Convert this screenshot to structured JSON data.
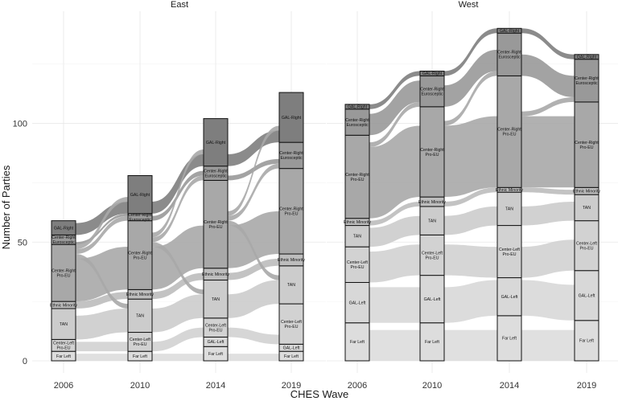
{
  "chart_data": {
    "type": "alluvial",
    "xlabel": "CHES Wave",
    "ylabel": "Number of Parties",
    "y_ticks": [
      0,
      50,
      100
    ],
    "ylim": [
      0,
      140
    ],
    "waves": [
      "2006",
      "2010",
      "2014",
      "2019"
    ],
    "categories": [
      "Far Left",
      "Center-Left Pro-EU",
      "TAN",
      "Ethnic Minority",
      "Center-Right Pro-EU",
      "Center-Right Eurosceptic",
      "GAL-Right",
      "GAL-Left"
    ],
    "category_colors": {
      "Far Left": "#dddddd",
      "GAL-Left": "#d8d8d8",
      "Center-Left Pro-EU": "#d2d2d2",
      "TAN": "#cccccc",
      "Ethnic Minority": "#bdbdbd",
      "Center-Right Pro-EU": "#a8a8a8",
      "Center-Right Eurosceptic": "#999999",
      "GAL-Right": "#7e7e7e"
    },
    "panels": [
      {
        "name": "East",
        "waves": [
          {
            "wave": "2006",
            "segments": [
              {
                "label": "Far Left",
                "value": 4
              },
              {
                "label": "Center-Left Pro-EU",
                "value": 5
              },
              {
                "label": "TAN",
                "value": 13
              },
              {
                "label": "Ethnic Minority",
                "value": 3
              },
              {
                "label": "Center-Right Pro-EU",
                "value": 24
              },
              {
                "label": "Center-Right Eurosceptic",
                "value": 4
              },
              {
                "label": "GAL-Right",
                "value": 6
              }
            ]
          },
          {
            "wave": "2010",
            "segments": [
              {
                "label": "Far Left",
                "value": 4
              },
              {
                "label": "Center-Left Pro-EU",
                "value": 8
              },
              {
                "label": "TAN",
                "value": 14
              },
              {
                "label": "Ethnic Minority",
                "value": 4
              },
              {
                "label": "Center-Right Pro-EU",
                "value": 29
              },
              {
                "label": "Center-Right Eurosceptic",
                "value": 3
              },
              {
                "label": "GAL-Right",
                "value": 16
              }
            ]
          },
          {
            "wave": "2014",
            "segments": [
              {
                "label": "Far Left",
                "value": 6
              },
              {
                "label": "GAL-Left",
                "value": 4
              },
              {
                "label": "Center-Left Pro-EU",
                "value": 8
              },
              {
                "label": "TAN",
                "value": 16
              },
              {
                "label": "Ethnic Minority",
                "value": 5
              },
              {
                "label": "Center-Right Pro-EU",
                "value": 37
              },
              {
                "label": "Center-Right Eurosceptic",
                "value": 6
              },
              {
                "label": "GAL-Right",
                "value": 20
              }
            ]
          },
          {
            "wave": "2019",
            "segments": [
              {
                "label": "Far Left",
                "value": 4
              },
              {
                "label": "GAL-Left",
                "value": 3
              },
              {
                "label": "Center-Left Pro-EU",
                "value": 17
              },
              {
                "label": "TAN",
                "value": 16
              },
              {
                "label": "Ethnic Minority",
                "value": 5
              },
              {
                "label": "Center-Right Pro-EU",
                "value": 36
              },
              {
                "label": "Center-Right Eurosceptic",
                "value": 11
              },
              {
                "label": "GAL-Right",
                "value": 21
              }
            ]
          }
        ],
        "flows": [
          {
            "from": "Far Left",
            "to": "Far Left",
            "value": 3
          },
          {
            "from": "Center-Left Pro-EU",
            "to": "Center-Left Pro-EU",
            "value": 4
          },
          {
            "from": "TAN",
            "to": "TAN",
            "value": 10
          },
          {
            "from": "Ethnic Minority",
            "to": "Ethnic Minority",
            "value": 3
          },
          {
            "from": "Center-Right Pro-EU",
            "to": "Center-Right Pro-EU",
            "value": 18
          },
          {
            "from": "Center-Right Pro-EU",
            "to": "TAN",
            "value": 2
          },
          {
            "from": "Center-Right Pro-EU",
            "to": "Center-Right Eurosceptic",
            "value": 2
          },
          {
            "from": "Center-Right Eurosceptic",
            "to": "Center-Right Eurosceptic",
            "value": 2
          },
          {
            "from": "GAL-Right",
            "to": "GAL-Right",
            "value": 5
          },
          {
            "from": "Center-Right Pro-EU",
            "to": "GAL-Right",
            "value": 2
          }
        ]
      },
      {
        "name": "West",
        "waves": [
          {
            "wave": "2006",
            "segments": [
              {
                "label": "Far Left",
                "value": 16
              },
              {
                "label": "GAL-Left",
                "value": 17
              },
              {
                "label": "Center-Left Pro-EU",
                "value": 15
              },
              {
                "label": "TAN",
                "value": 9
              },
              {
                "label": "Ethnic Minority",
                "value": 3
              },
              {
                "label": "Center-Right Pro-EU",
                "value": 35
              },
              {
                "label": "Center-Right Eurosceptic",
                "value": 11
              },
              {
                "label": "GAL-Right",
                "value": 2
              }
            ]
          },
          {
            "wave": "2010",
            "segments": [
              {
                "label": "Far Left",
                "value": 16
              },
              {
                "label": "GAL-Left",
                "value": 20
              },
              {
                "label": "Center-Left Pro-EU",
                "value": 17
              },
              {
                "label": "TAN",
                "value": 12
              },
              {
                "label": "Ethnic Minority",
                "value": 4
              },
              {
                "label": "Center-Right Pro-EU",
                "value": 38
              },
              {
                "label": "Center-Right Eurosceptic",
                "value": 13
              },
              {
                "label": "GAL-Right",
                "value": 2
              }
            ]
          },
          {
            "wave": "2014",
            "segments": [
              {
                "label": "Far Left",
                "value": 19
              },
              {
                "label": "GAL-Left",
                "value": 16
              },
              {
                "label": "Center-Left Pro-EU",
                "value": 22
              },
              {
                "label": "TAN",
                "value": 14
              },
              {
                "label": "Ethnic Minority",
                "value": 2
              },
              {
                "label": "Center-Right Pro-EU",
                "value": 47
              },
              {
                "label": "Center-Right Eurosceptic",
                "value": 18
              },
              {
                "label": "GAL-Right",
                "value": 2
              }
            ]
          },
          {
            "wave": "2019",
            "segments": [
              {
                "label": "Far Left",
                "value": 17
              },
              {
                "label": "GAL-Left",
                "value": 21
              },
              {
                "label": "Center-Left Pro-EU",
                "value": 21
              },
              {
                "label": "TAN",
                "value": 11
              },
              {
                "label": "Ethnic Minority",
                "value": 3
              },
              {
                "label": "Center-Right Pro-EU",
                "value": 36
              },
              {
                "label": "Center-Right Eurosceptic",
                "value": 18
              },
              {
                "label": "GAL-Right",
                "value": 2
              }
            ]
          }
        ],
        "flows": [
          {
            "from": "Far Left",
            "to": "Far Left",
            "value": 13
          },
          {
            "from": "GAL-Left",
            "to": "GAL-Left",
            "value": 15
          },
          {
            "from": "Center-Left Pro-EU",
            "to": "Center-Left Pro-EU",
            "value": 13
          },
          {
            "from": "TAN",
            "to": "TAN",
            "value": 8
          },
          {
            "from": "Ethnic Minority",
            "to": "Ethnic Minority",
            "value": 2
          },
          {
            "from": "Center-Right Pro-EU",
            "to": "Center-Right Pro-EU",
            "value": 30
          },
          {
            "from": "Center-Right Pro-EU",
            "to": "Center-Right Eurosceptic",
            "value": 2
          },
          {
            "from": "Center-Right Eurosceptic",
            "to": "Center-Right Eurosceptic",
            "value": 9
          },
          {
            "from": "GAL-Right",
            "to": "GAL-Right",
            "value": 2
          }
        ]
      }
    ]
  }
}
